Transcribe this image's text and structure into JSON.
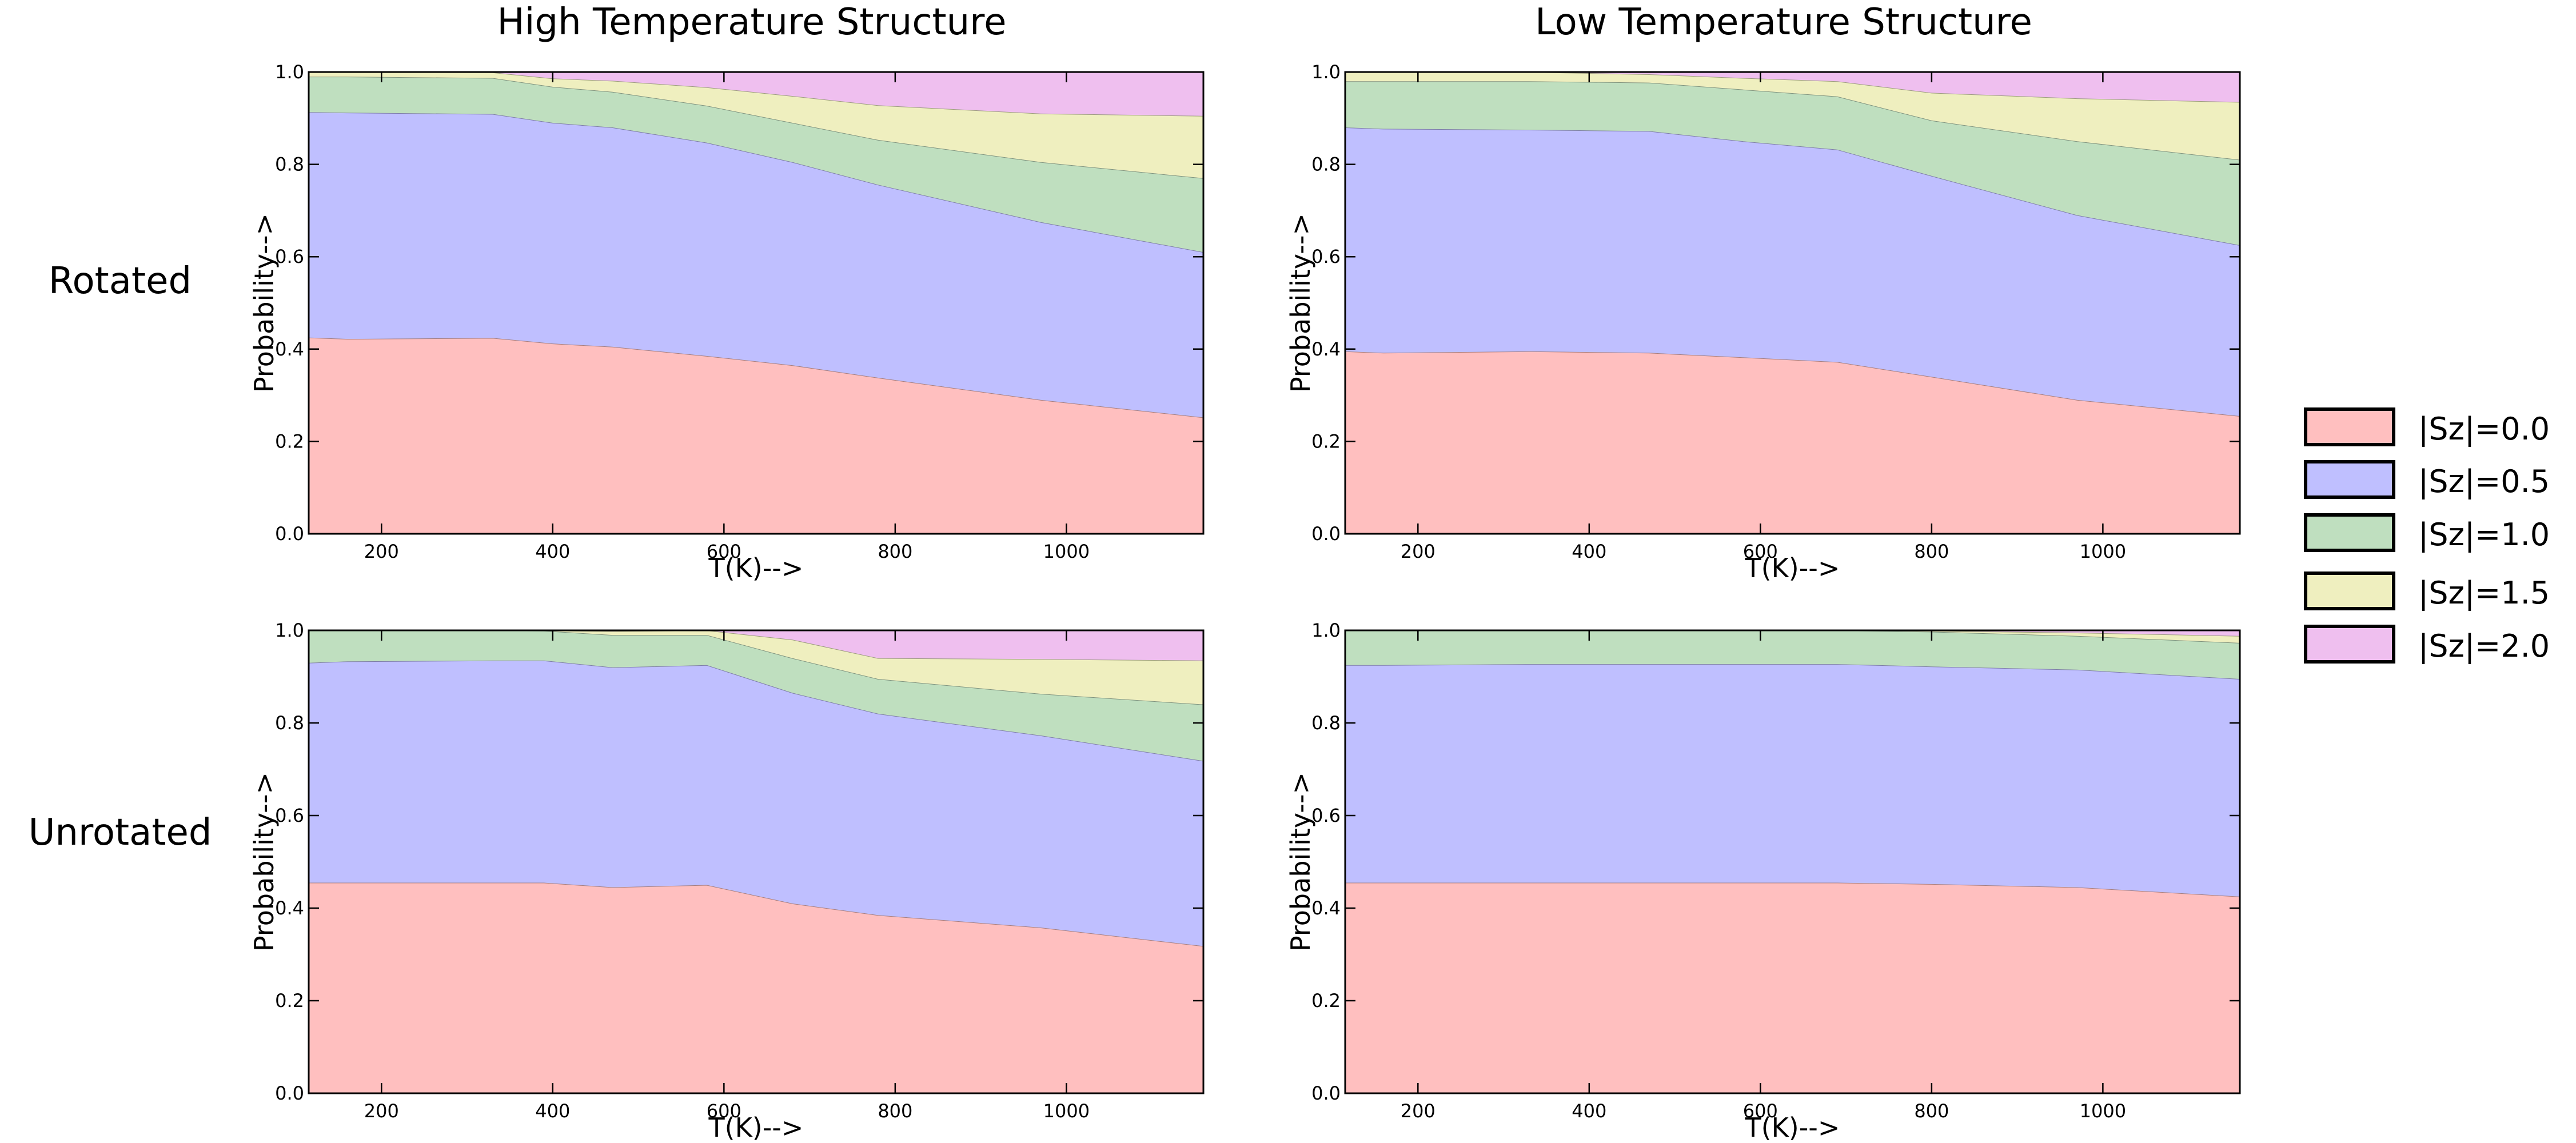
{
  "figure": {
    "column_titles": [
      "High Temperature Structure",
      "Low Temperature Structure"
    ],
    "row_labels": [
      "Rotated",
      "Unrotated"
    ]
  },
  "legend": {
    "items": [
      {
        "label": "|Sz|=0.0",
        "color": "#ffbfbf"
      },
      {
        "label": "|Sz|=0.5",
        "color": "#bfbfff"
      },
      {
        "label": "|Sz|=1.0",
        "color": "#bfdfbf"
      },
      {
        "label": "|Sz|=1.5",
        "color": "#efefbf"
      },
      {
        "label": "|Sz|=2.0",
        "color": "#efbfef"
      }
    ]
  },
  "chart_data": [
    {
      "type": "area",
      "stacked": true,
      "column_title": "High Temperature Structure",
      "row_label": "Rotated",
      "xlabel": "T(K)-->",
      "ylabel": "Probability-->",
      "xlim": [
        115,
        1160
      ],
      "ylim": [
        0,
        1
      ],
      "xticks": [
        "200",
        "400",
        "600",
        "800",
        "1000"
      ],
      "yticks": [
        "0.0",
        "0.2",
        "0.4",
        "0.6",
        "0.8",
        "1.0"
      ],
      "x": [
        115,
        160,
        330,
        400,
        470,
        580,
        680,
        780,
        970,
        1160
      ],
      "series": [
        {
          "name": "|Sz|=0.0",
          "values": [
            0.425,
            0.422,
            0.424,
            0.412,
            0.405,
            0.385,
            0.365,
            0.338,
            0.29,
            0.252
          ]
        },
        {
          "name": "|Sz|=0.5",
          "values": [
            0.488,
            0.49,
            0.485,
            0.478,
            0.475,
            0.462,
            0.44,
            0.418,
            0.385,
            0.358
          ]
        },
        {
          "name": "|Sz|=1.0",
          "values": [
            0.077,
            0.078,
            0.078,
            0.078,
            0.077,
            0.08,
            0.085,
            0.097,
            0.13,
            0.16
          ]
        },
        {
          "name": "|Sz|=1.5",
          "values": [
            0.01,
            0.01,
            0.012,
            0.018,
            0.024,
            0.04,
            0.058,
            0.075,
            0.105,
            0.135
          ]
        },
        {
          "name": "|Sz|=2.0",
          "values": [
            0.0,
            0.0,
            0.001,
            0.014,
            0.019,
            0.033,
            0.052,
            0.072,
            0.09,
            0.095
          ]
        }
      ]
    },
    {
      "type": "area",
      "stacked": true,
      "column_title": "Low Temperature Structure",
      "row_label": "Rotated",
      "xlabel": "T(K)-->",
      "ylabel": "Probability-->",
      "xlim": [
        115,
        1160
      ],
      "ylim": [
        0,
        1
      ],
      "xticks": [
        "200",
        "400",
        "600",
        "800",
        "1000"
      ],
      "yticks": [
        "0.0",
        "0.2",
        "0.4",
        "0.6",
        "0.8",
        "1.0"
      ],
      "x": [
        115,
        160,
        330,
        470,
        580,
        690,
        800,
        970,
        1160
      ],
      "series": [
        {
          "name": "|Sz|=0.0",
          "values": [
            0.395,
            0.392,
            0.395,
            0.392,
            0.382,
            0.372,
            0.34,
            0.29,
            0.255
          ]
        },
        {
          "name": "|Sz|=0.5",
          "values": [
            0.485,
            0.485,
            0.48,
            0.48,
            0.468,
            0.46,
            0.435,
            0.4,
            0.37
          ]
        },
        {
          "name": "|Sz|=1.0",
          "values": [
            0.1,
            0.103,
            0.105,
            0.105,
            0.112,
            0.115,
            0.12,
            0.16,
            0.185
          ]
        },
        {
          "name": "|Sz|=1.5",
          "values": [
            0.02,
            0.02,
            0.02,
            0.018,
            0.025,
            0.033,
            0.06,
            0.093,
            0.125
          ]
        },
        {
          "name": "|Sz|=2.0",
          "values": [
            0.0,
            0.0,
            0.0,
            0.005,
            0.013,
            0.02,
            0.045,
            0.057,
            0.065
          ]
        }
      ]
    },
    {
      "type": "area",
      "stacked": true,
      "column_title": "High Temperature Structure",
      "row_label": "Unrotated",
      "xlabel": "T(K)-->",
      "ylabel": "Probability-->",
      "xlim": [
        115,
        1160
      ],
      "ylim": [
        0,
        1
      ],
      "xticks": [
        "200",
        "400",
        "600",
        "800",
        "1000"
      ],
      "yticks": [
        "0.0",
        "0.2",
        "0.4",
        "0.6",
        "0.8",
        "1.0"
      ],
      "x": [
        115,
        160,
        330,
        390,
        470,
        580,
        680,
        780,
        970,
        1160
      ],
      "series": [
        {
          "name": "|Sz|=0.0",
          "values": [
            0.455,
            0.455,
            0.455,
            0.455,
            0.445,
            0.45,
            0.41,
            0.385,
            0.358,
            0.318
          ]
        },
        {
          "name": "|Sz|=0.5",
          "values": [
            0.475,
            0.478,
            0.48,
            0.48,
            0.475,
            0.475,
            0.455,
            0.435,
            0.415,
            0.4
          ]
        },
        {
          "name": "|Sz|=1.0",
          "values": [
            0.07,
            0.067,
            0.065,
            0.064,
            0.07,
            0.065,
            0.075,
            0.075,
            0.09,
            0.122
          ]
        },
        {
          "name": "|Sz|=1.5",
          "values": [
            0.0,
            0.0,
            0.0,
            0.001,
            0.008,
            0.01,
            0.04,
            0.045,
            0.075,
            0.095
          ]
        },
        {
          "name": "|Sz|=2.0",
          "values": [
            0.0,
            0.0,
            0.0,
            0.0,
            0.002,
            0.0,
            0.02,
            0.06,
            0.062,
            0.065
          ]
        }
      ]
    },
    {
      "type": "area",
      "stacked": true,
      "column_title": "Low Temperature Structure",
      "row_label": "Unrotated",
      "xlabel": "T(K)-->",
      "ylabel": "Probability-->",
      "xlim": [
        115,
        1160
      ],
      "ylim": [
        0,
        1
      ],
      "xticks": [
        "200",
        "400",
        "600",
        "800",
        "1000"
      ],
      "yticks": [
        "0.0",
        "0.2",
        "0.4",
        "0.6",
        "0.8",
        "1.0"
      ],
      "x": [
        115,
        160,
        330,
        470,
        580,
        690,
        800,
        970,
        1160
      ],
      "series": [
        {
          "name": "|Sz|=0.0",
          "values": [
            0.455,
            0.455,
            0.455,
            0.455,
            0.455,
            0.455,
            0.452,
            0.445,
            0.425
          ]
        },
        {
          "name": "|Sz|=0.5",
          "values": [
            0.47,
            0.47,
            0.472,
            0.472,
            0.472,
            0.472,
            0.47,
            0.47,
            0.47
          ]
        },
        {
          "name": "|Sz|=1.0",
          "values": [
            0.075,
            0.075,
            0.073,
            0.073,
            0.073,
            0.073,
            0.075,
            0.073,
            0.078
          ]
        },
        {
          "name": "|Sz|=1.5",
          "values": [
            0.0,
            0.0,
            0.0,
            0.0,
            0.0,
            0.0,
            0.002,
            0.007,
            0.015
          ]
        },
        {
          "name": "|Sz|=2.0",
          "values": [
            0.0,
            0.0,
            0.0,
            0.0,
            0.0,
            0.0,
            0.001,
            0.005,
            0.012
          ]
        }
      ]
    }
  ]
}
